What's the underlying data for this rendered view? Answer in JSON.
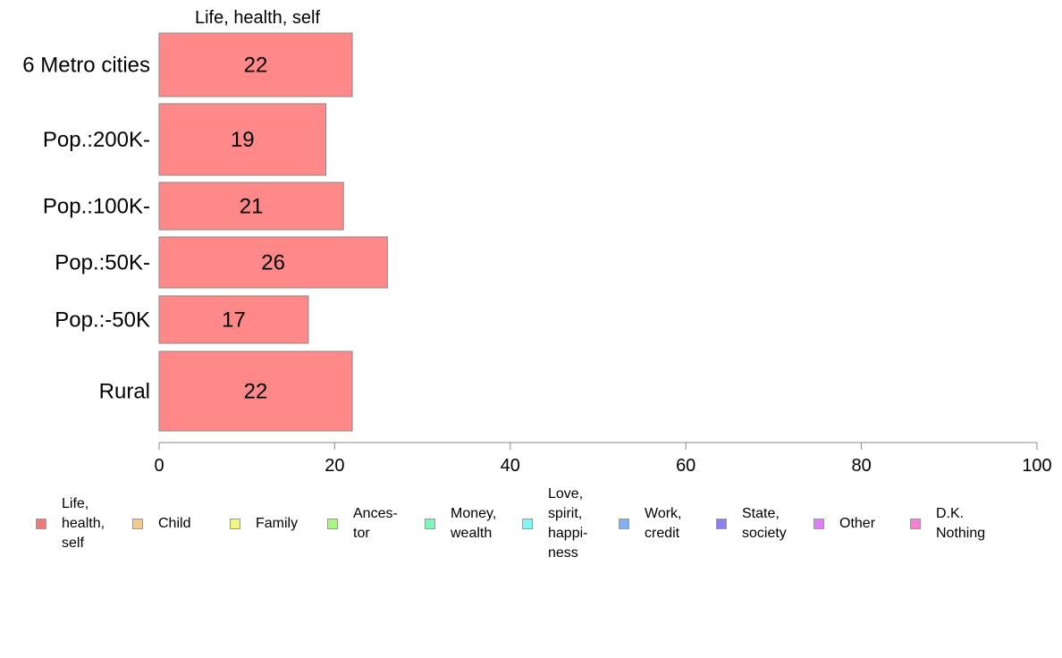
{
  "chart_data": {
    "type": "bar",
    "orientation": "horizontal",
    "title": "Life, health, self",
    "categories": [
      "6 Metro cities",
      "Pop.:200K-",
      "Pop.:100K-",
      "Pop.:50K-",
      "Pop.:-50K",
      "Rural"
    ],
    "series": [
      {
        "name": "Life, health, self",
        "values": [
          22,
          19,
          21,
          26,
          17,
          22
        ],
        "color": "#ff8888"
      }
    ],
    "xlim": [
      0,
      100
    ],
    "xticks": [
      "0",
      "20",
      "40",
      "60",
      "80",
      "100"
    ],
    "grid": false,
    "legend_position": "bottom",
    "bar_stroke": "#888888"
  },
  "legend": [
    {
      "label": "Life,\nhealth,\nself",
      "color": "#f07a7a"
    },
    {
      "label": "Child",
      "color": "#f7c98a"
    },
    {
      "label": "Family",
      "color": "#eef77e"
    },
    {
      "label": "Ances-\ntor",
      "color": "#a8f77e"
    },
    {
      "label": "Money,\nwealth",
      "color": "#7ef7b8"
    },
    {
      "label": "Love,\nspirit,\nhappi-\nness",
      "color": "#7ef7f7"
    },
    {
      "label": "Work,\ncredit",
      "color": "#7eb0f7"
    },
    {
      "label": "State,\nsociety",
      "color": "#8c7ef7"
    },
    {
      "label": "Other",
      "color": "#e07ef7"
    },
    {
      "label": "D.K.\nNothing",
      "color": "#f77ed0"
    }
  ]
}
